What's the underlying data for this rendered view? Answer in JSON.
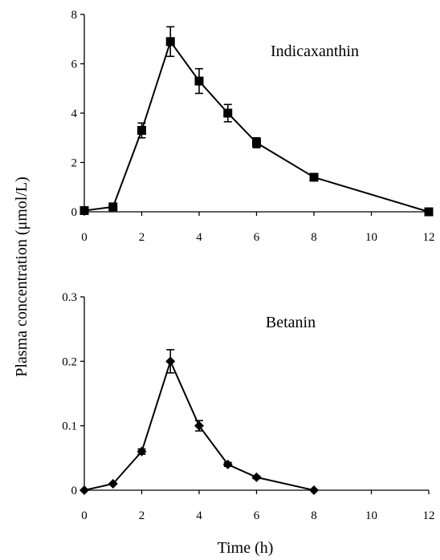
{
  "chart_data": [
    {
      "type": "line",
      "title": "Indicaxanthin",
      "xlabel": "",
      "ylabel": "",
      "xlim": [
        0,
        12
      ],
      "ylim": [
        0,
        8
      ],
      "xticks": [
        0,
        2,
        4,
        6,
        8,
        10,
        12
      ],
      "xtick_labels": [
        "0",
        "2",
        "4",
        "6",
        "8",
        "10",
        "12"
      ],
      "yticks": [
        0,
        2,
        4,
        6,
        8
      ],
      "ytick_labels": [
        "0",
        "2",
        "4",
        "6",
        "8"
      ],
      "marker": "square",
      "grid": false,
      "series": [
        {
          "x": [
            0,
            1,
            2,
            3,
            4,
            5,
            6,
            8,
            12
          ],
          "y": [
            0.05,
            0.2,
            3.3,
            6.9,
            5.3,
            4.0,
            2.8,
            1.4,
            0.0
          ],
          "err": [
            0.1,
            0.1,
            0.3,
            0.6,
            0.5,
            0.35,
            0.2,
            0.1,
            0.1
          ]
        }
      ]
    },
    {
      "type": "line",
      "title": "Betanin",
      "xlabel": "Time (h)",
      "ylabel": "",
      "xlim": [
        0,
        12
      ],
      "ylim": [
        0,
        0.3
      ],
      "xticks": [
        0,
        2,
        4,
        6,
        8,
        10,
        12
      ],
      "xtick_labels": [
        "0",
        "2",
        "4",
        "6",
        "8",
        "10",
        "12"
      ],
      "yticks": [
        0,
        0.1,
        0.2,
        0.3
      ],
      "ytick_labels": [
        "0",
        "0.1",
        "0.2",
        "0.3"
      ],
      "marker": "diamond",
      "grid": false,
      "series": [
        {
          "x": [
            0,
            1,
            2,
            3,
            4,
            5,
            6,
            8
          ],
          "y": [
            0.0,
            0.01,
            0.06,
            0.2,
            0.1,
            0.04,
            0.02,
            0.0
          ],
          "err": [
            0.0,
            0.0,
            0.004,
            0.018,
            0.008,
            0.003,
            0.002,
            0.0
          ]
        }
      ]
    }
  ],
  "shared": {
    "ylabel": "Plasma concentration (μmol/L)"
  }
}
